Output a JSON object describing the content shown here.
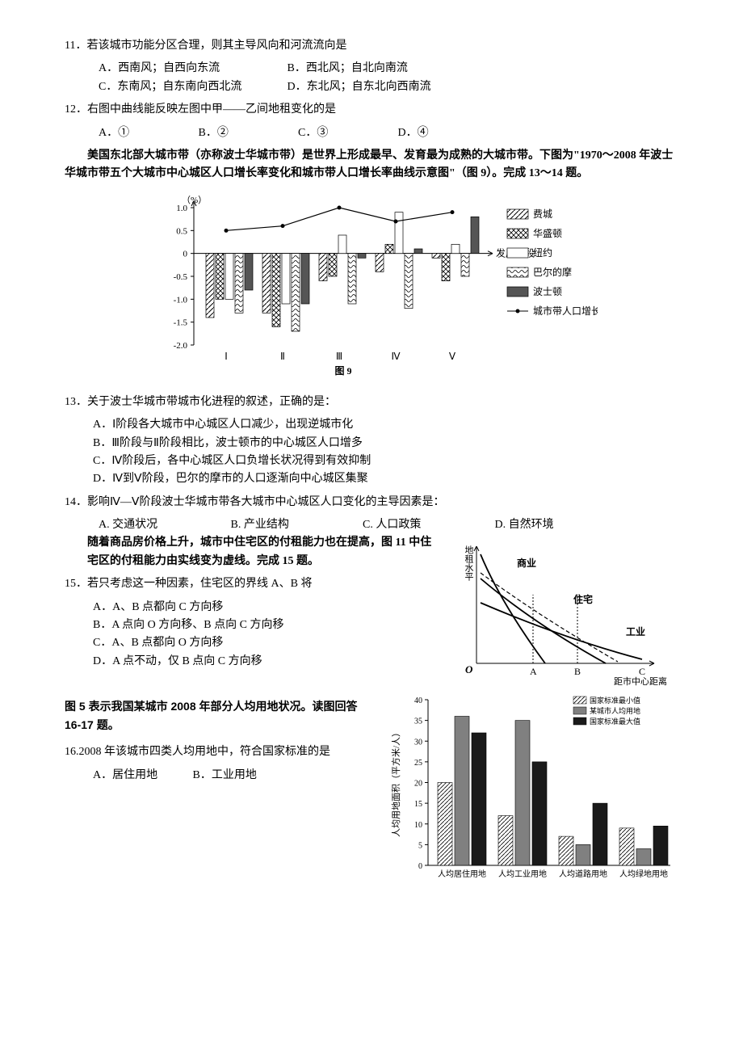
{
  "q11": {
    "num": "11．",
    "stem": "若该城市功能分区合理，则其主导风向和河流流向是",
    "A": "A．西南风；自西向东流",
    "B": "B．西北风；自北向南流",
    "C": "C．东南风；自东南向西北流",
    "D": "D．东北风；自东北向西南流"
  },
  "q12": {
    "num": "12．",
    "stem": "右图中曲线能反映左图中甲——乙间地租变化的是",
    "A": "A．①",
    "B": "B．②",
    "C": "C．③",
    "D": "D．④"
  },
  "intro9": "美国东北部大城市带（亦称波士华城市带）是世界上形成最早、发育最为成熟的大城市带。下图为\"1970～2008 年波士华城市带五个大城市中心城区人口增长率变化和城市带人口增长率曲线示意图\"（图 9）。完成 13～14 题。",
  "chart9": {
    "ylabel": "（%）",
    "ylim": [
      -2.0,
      1.0
    ],
    "yticks": [
      "1.0",
      "0.5",
      "0",
      "-0.5",
      "-1.0",
      "-1.5",
      "-2.0"
    ],
    "stages": [
      "Ⅰ",
      "Ⅱ",
      "Ⅲ",
      "Ⅳ",
      "Ⅴ"
    ],
    "caption": "图 9",
    "xlabel": "发展阶段",
    "legend": [
      "费城",
      "华盛顿",
      "纽约",
      "巴尔的摩",
      "波士顿",
      "城市带人口增长率"
    ],
    "series": {
      "feicheng": [
        -1.4,
        -1.3,
        -0.6,
        -0.4,
        -0.1
      ],
      "huashengdun": [
        -1.0,
        -1.6,
        -0.5,
        0.2,
        -0.6
      ],
      "niuyue": [
        -1.0,
        -1.1,
        0.4,
        0.9,
        0.2
      ],
      "baerdimo": [
        -1.3,
        -1.7,
        -1.1,
        -1.2,
        -0.5
      ],
      "boshidun": [
        -0.8,
        -1.1,
        -0.1,
        0.1,
        0.8
      ],
      "line": [
        0.5,
        0.6,
        1.0,
        0.7,
        0.9
      ]
    },
    "patterns": {
      "feicheng": "diag",
      "huashengdun": "cross",
      "niuyue": "none",
      "baerdimo": "wave",
      "boshidun": "solid"
    }
  },
  "q13": {
    "num": "13．",
    "stem": "关于波士华城市带城市化进程的叙述，正确的是：",
    "A": "A．Ⅰ阶段各大城市中心城区人口减少，出现逆城市化",
    "B": "B．Ⅲ阶段与Ⅱ阶段相比，波士顿市的中心城区人口增多",
    "C": "C．Ⅳ阶段后，各中心城区人口负增长状况得到有效抑制",
    "D": "D．Ⅳ到Ⅴ阶段，巴尔的摩市的人口逐渐向中心城区集聚"
  },
  "q14": {
    "num": "14．",
    "stem": "影响Ⅳ—Ⅴ阶段波士华城市带各大城市中心城区人口变化的主导因素是：",
    "A": "A. 交通状况",
    "B": "B. 产业结构",
    "C": "C. 人口政策",
    "D": "D. 自然环境"
  },
  "intro11": "随着商品房价格上升，城市中住宅区的付租能力也在提高，图 11 中住宅区的付租能力由实线变为虚线。完成 15 题。",
  "fig11": {
    "ylabel_top": "地租水平",
    "curves": [
      "商业",
      "住宅",
      "工业"
    ],
    "xaxis": [
      "O",
      "A",
      "B",
      "C"
    ],
    "xlabel": "距市中心距离"
  },
  "q15": {
    "num": "15．",
    "stem": "若只考虑这一种因素，住宅区的界线 A、B 将",
    "A": "A．A、B 点都向 C 方向移",
    "B": "B．A 点向 O 方向移、B 点向 C 方向移",
    "C": "C．A、B 点都向 O 方向移",
    "D": "D．A 点不动，仅 B 点向 C 方向移"
  },
  "intro5": "图 5 表示我国某城市 2008 年部分人均用地状况。读图回答 16-17 题。",
  "chart5": {
    "ylabel": "人均用地面积（平方米/人）",
    "ylim": [
      0,
      40
    ],
    "ytick_step": 5,
    "categories": [
      "人均居住用地",
      "人均工业用地",
      "人均道路用地",
      "人均绿地用地"
    ],
    "legend": [
      "国家标准最小值",
      "某城市人均用地",
      "国家标准最大值"
    ],
    "colors": {
      "min": "pattern",
      "city": "#808080",
      "max": "#1a1a1a"
    },
    "data": {
      "min": [
        20,
        12,
        7,
        9
      ],
      "city": [
        36,
        35,
        5,
        4
      ],
      "max": [
        32,
        25,
        15,
        9.5
      ]
    }
  },
  "q16": {
    "num": "16.",
    "stem": "2008 年该城市四类人均用地中，符合国家标准的是",
    "A": "A．居住用地",
    "B": "B．工业用地"
  }
}
